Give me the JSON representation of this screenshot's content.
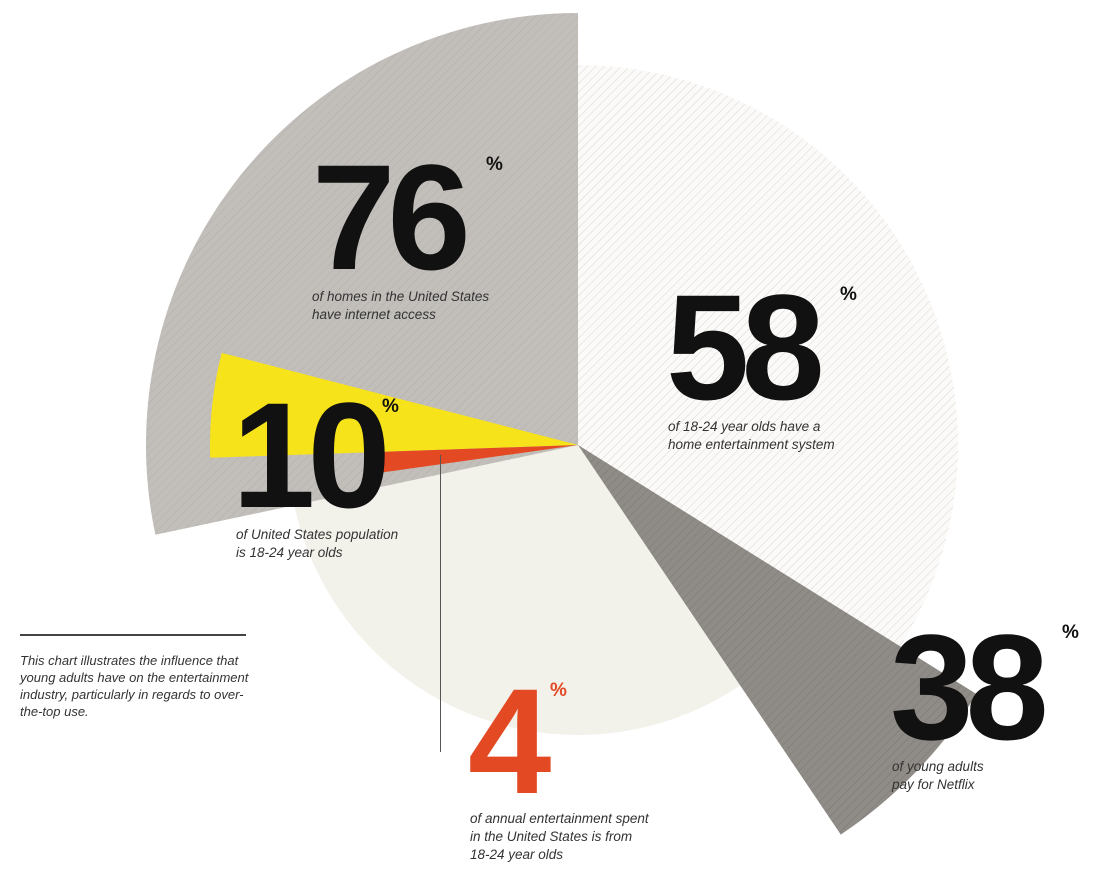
{
  "chart_data": {
    "type": "pie",
    "series": [
      {
        "label": "of homes in the United States have internet access",
        "value": 76,
        "unit": "%",
        "color": "#c2bfbb"
      },
      {
        "label": "of 18-24 year olds have a home entertainment system",
        "value": 58,
        "unit": "%",
        "color": "#f4f2ef"
      },
      {
        "label": "of young adults pay for Netflix",
        "value": 38,
        "unit": "%",
        "color": "#8f8b86"
      },
      {
        "label": "of annual entertainment spent in the United States is from 18-24 year olds",
        "value": 4,
        "unit": "%",
        "color": "#e34a24"
      },
      {
        "label": "of United States population is 18-24 year olds",
        "value": 10,
        "unit": "%",
        "color": "#f6e31a"
      }
    ]
  },
  "stats": {
    "s76": {
      "value": "76",
      "unit": "%",
      "caption": "of homes in the United States\nhave internet access"
    },
    "s58": {
      "value": "58",
      "unit": "%",
      "caption": "of 18-24 year olds have a\nhome entertainment system"
    },
    "s38": {
      "value": "38",
      "unit": "%",
      "caption": "of young adults\npay for Netflix"
    },
    "s10": {
      "value": "10",
      "unit": "%",
      "caption": "of United States population\nis 18-24 year olds"
    },
    "s4": {
      "value": "4",
      "unit": "%",
      "caption": "of annual entertainment spent\nin the United States is from\n18-24 year olds"
    }
  },
  "intro": "This chart illustrates the influence that young adults have on the entertainment industry, particularly in regards to over-the-top use.",
  "colors": {
    "text": "#111111",
    "accent": "#e34a24",
    "background_circle": "#f2f1ea"
  }
}
